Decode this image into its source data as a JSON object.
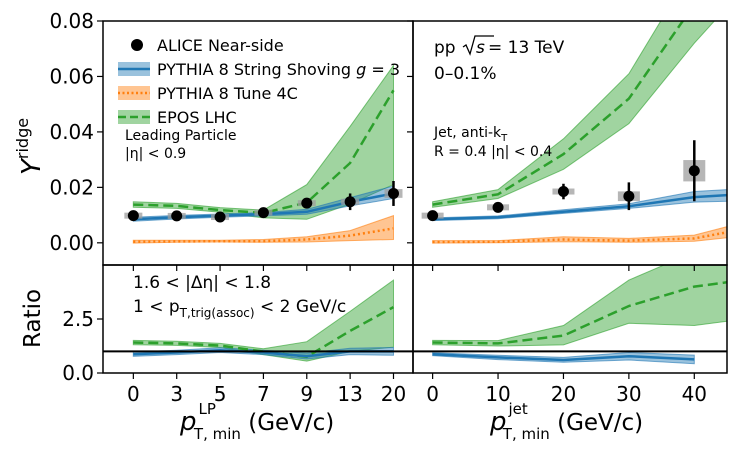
{
  "chart_data": {
    "type": "line",
    "ylabel_top": "Y",
    "ylabel_top_sup": "ridge",
    "ylabel_bottom": "Ratio",
    "xlabel_left": {
      "main": "p",
      "sup": "LP",
      "sub": "T, min",
      "unit": " (GeV/c)"
    },
    "xlabel_right": {
      "main": "p",
      "sup": "jet",
      "sub": "T, min",
      "unit": " (GeV/c)"
    },
    "y_top": {
      "lim": [
        -0.008,
        0.08
      ],
      "ticks": [
        "0.00",
        "0.02",
        "0.04",
        "0.06",
        "0.08"
      ],
      "tick_values": [
        0,
        0.02,
        0.04,
        0.06,
        0.08
      ]
    },
    "y_bottom": {
      "lim": [
        0.0,
        5.0
      ],
      "ticks": [
        "0.0",
        "2.5"
      ],
      "tick_values": [
        0,
        2.5
      ]
    },
    "x_left": {
      "tick_labels": [
        "0",
        "3",
        "5",
        "7",
        "9",
        "13",
        "20"
      ],
      "positions": [
        0,
        1,
        2,
        3,
        4,
        5,
        6
      ],
      "lim": [
        -0.7,
        6.45
      ]
    },
    "x_right": {
      "tick_labels": [
        "0",
        "10",
        "20",
        "30",
        "40"
      ],
      "tick_values": [
        0,
        10,
        20,
        30,
        40
      ],
      "lim": [
        -3,
        45
      ]
    },
    "legend": {
      "alice": "ALICE Near-side",
      "shoving": "PYTHIA 8 String Shoving g = 3",
      "shoving_prefix": "PYTHIA 8 String Shoving ",
      "shoving_g": "g",
      "shoving_suffix": " = 3",
      "tune4c": "PYTHIA 8 Tune 4C",
      "epos": "EPOS LHC"
    },
    "annotations": {
      "leading_particle": "Leading Particle",
      "eta_cut": "|η| < 0.9",
      "system": "pp",
      "sqrt_s": "s",
      "energy": " = 13 TeV",
      "centrality": "0–0.1%",
      "jet_label": "Jet, anti-k",
      "jet_label_sub": "T",
      "jet_radius": "R = 0.4 |η| < 0.4",
      "deta": "1.6 < |Δη| < 1.8",
      "ptrig_prefix": "1 < p",
      "ptrig_sub": "T,trig(assoc)",
      "ptrig_suffix": " < 2 GeV/c"
    },
    "colors": {
      "alice": "#000000",
      "shoving": "#1f77b4",
      "tune4c": "#ff7f0e",
      "epos": "#2ca02c"
    },
    "left": {
      "alice": {
        "x": [
          0,
          1,
          2,
          3,
          4,
          5,
          6
        ],
        "y": [
          0.0098,
          0.0097,
          0.0093,
          0.0109,
          0.0143,
          0.0148,
          0.0178
        ],
        "err": [
          0.001,
          0.0009,
          0.0009,
          0.001,
          0.0015,
          0.003,
          0.0045
        ]
      },
      "shoving": {
        "x": [
          0,
          1,
          2,
          3,
          4,
          5,
          6
        ],
        "y": [
          0.0085,
          0.0092,
          0.0098,
          0.0103,
          0.0112,
          0.0148,
          0.0178
        ],
        "low": [
          0.0078,
          0.0086,
          0.0092,
          0.0097,
          0.0103,
          0.0133,
          0.016
        ],
        "high": [
          0.0092,
          0.0099,
          0.0104,
          0.0109,
          0.0121,
          0.0163,
          0.0205
        ]
      },
      "tune4c": {
        "x": [
          0,
          1,
          2,
          3,
          4,
          5,
          6
        ],
        "y": [
          0.0004,
          0.0005,
          0.0006,
          0.0006,
          0.0012,
          0.0026,
          0.0052
        ],
        "low": [
          -0.0001,
          0.0002,
          0.0003,
          0.0002,
          0.0003,
          0.0008,
          0.0012
        ],
        "high": [
          0.0009,
          0.0009,
          0.0009,
          0.0012,
          0.0022,
          0.0044,
          0.0098
        ]
      },
      "epos": {
        "x": [
          0,
          1,
          2,
          3,
          4,
          5,
          6
        ],
        "y": [
          0.0138,
          0.0133,
          0.0118,
          0.0108,
          0.0145,
          0.0288,
          0.055
        ],
        "low": [
          0.0128,
          0.0124,
          0.011,
          0.009,
          0.0085,
          0.014,
          0.021
        ],
        "high": [
          0.0148,
          0.0142,
          0.0127,
          0.0118,
          0.021,
          0.042,
          0.064
        ]
      }
    },
    "right": {
      "alice": {
        "x": [
          0,
          10,
          20,
          30,
          40
        ],
        "y": [
          0.0098,
          0.0128,
          0.0185,
          0.0168,
          0.026
        ],
        "err": [
          0.001,
          0.0015,
          0.0028,
          0.005,
          0.011
        ]
      },
      "shoving": {
        "x": [
          0,
          10,
          20,
          30,
          40,
          45
        ],
        "y": [
          0.0085,
          0.0092,
          0.0112,
          0.0132,
          0.0165,
          0.0172
        ],
        "low": [
          0.008,
          0.0087,
          0.0106,
          0.0124,
          0.0147,
          0.015
        ],
        "high": [
          0.009,
          0.0097,
          0.0119,
          0.0141,
          0.0185,
          0.0192
        ]
      },
      "tune4c": {
        "x": [
          0,
          10,
          20,
          30,
          40,
          45
        ],
        "y": [
          0.0003,
          0.0004,
          0.0012,
          0.0008,
          0.0016,
          0.0038
        ],
        "low": [
          -0.0001,
          0.0,
          0.0004,
          0.0002,
          0.0006,
          0.0018
        ],
        "high": [
          0.0008,
          0.0008,
          0.0022,
          0.0016,
          0.0028,
          0.0058
        ]
      },
      "epos": {
        "x": [
          0,
          10,
          20,
          30,
          40,
          45
        ],
        "y": [
          0.0138,
          0.0175,
          0.032,
          0.052,
          0.086,
          0.105
        ],
        "low": [
          0.0128,
          0.016,
          0.0265,
          0.043,
          0.072,
          0.085
        ],
        "high": [
          0.0148,
          0.0192,
          0.0375,
          0.061,
          0.1,
          0.12
        ]
      }
    },
    "ratio_left": {
      "reference": 1.0,
      "shoving": {
        "x": [
          0,
          1,
          2,
          3,
          4,
          5,
          6
        ],
        "y": [
          0.87,
          0.95,
          1.05,
          0.95,
          0.78,
          1.0,
          1.0
        ],
        "low": [
          0.77,
          0.85,
          0.95,
          0.85,
          0.65,
          0.85,
          0.82
        ],
        "high": [
          0.97,
          1.05,
          1.17,
          1.05,
          0.92,
          1.15,
          1.18
        ]
      },
      "epos": {
        "x": [
          0,
          1,
          2,
          3,
          4,
          5,
          6
        ],
        "y": [
          1.41,
          1.37,
          1.27,
          0.99,
          0.75,
          1.95,
          3.05
        ],
        "low": [
          1.31,
          1.28,
          1.18,
          0.85,
          0.55,
          1.0,
          1.2
        ],
        "high": [
          1.51,
          1.47,
          1.37,
          1.12,
          1.45,
          2.85,
          4.3
        ]
      }
    },
    "ratio_right": {
      "reference": 1.0,
      "shoving": {
        "x": [
          0,
          10,
          20,
          30,
          40
        ],
        "y": [
          0.87,
          0.72,
          0.6,
          0.78,
          0.63
        ],
        "low": [
          0.8,
          0.62,
          0.5,
          0.6,
          0.43
        ],
        "high": [
          0.94,
          0.82,
          0.72,
          0.95,
          0.83
        ]
      },
      "epos": {
        "x": [
          0,
          10,
          20,
          30,
          40,
          45
        ],
        "y": [
          1.41,
          1.37,
          1.73,
          3.1,
          4.0,
          4.2
        ],
        "low": [
          1.31,
          1.25,
          1.3,
          2.3,
          2.2,
          2.4
        ],
        "high": [
          1.51,
          1.5,
          2.2,
          4.3,
          5.6,
          5.9
        ]
      }
    }
  }
}
